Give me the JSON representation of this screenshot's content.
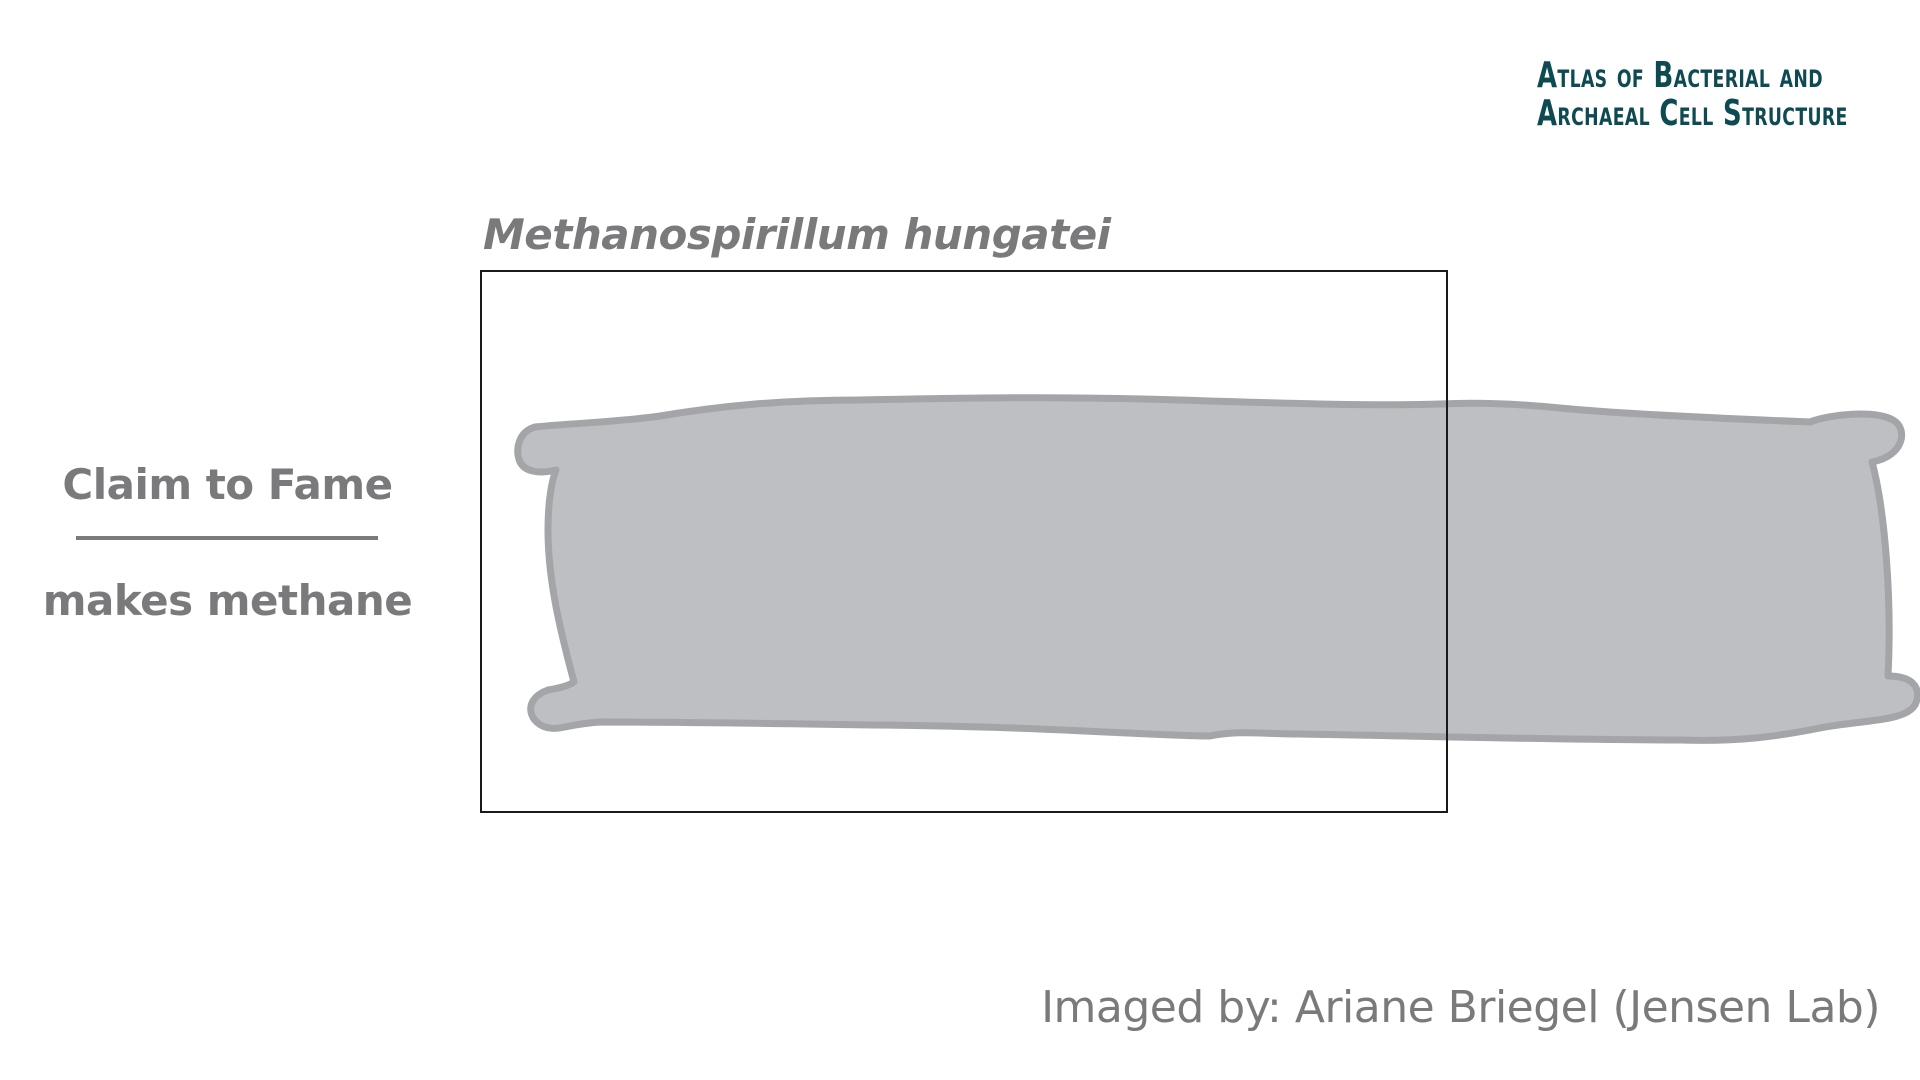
{
  "logo": {
    "a": "A",
    "tlas": "TLAS",
    "of": "OF",
    "b": "B",
    "acterial": "ACTERIAL",
    "and": "AND",
    "ar": "A",
    "rchaeal": "RCHAEAL",
    "c": "C",
    "ell": "ELL",
    "s": "S",
    "tructure": "TRUCTURE"
  },
  "species_name": "Methanospirillum hungatei",
  "claim": {
    "title": "Claim to Fame",
    "value": "makes methane"
  },
  "credit": "Imaged by: Ariane Briegel (Jensen Lab)",
  "colors": {
    "text_gray": "#7a7a7c",
    "logo_teal": "#0e4a52",
    "cell_fill": "#bebfc2",
    "cell_outline": "#a4a5a8",
    "frame": "#1a1a1a"
  }
}
